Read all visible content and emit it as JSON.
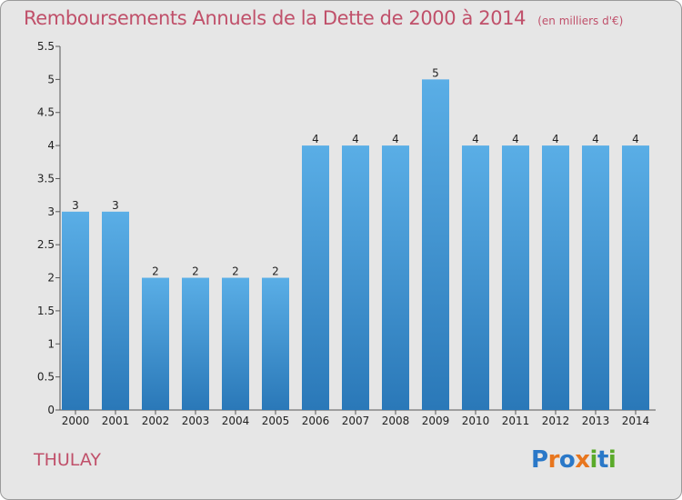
{
  "chart_data": {
    "type": "bar",
    "title": "Remboursements Annuels de la Dette de 2000 à 2014",
    "subtitle": "(en milliers d'€)",
    "categories": [
      "2000",
      "2001",
      "2002",
      "2003",
      "2004",
      "2005",
      "2006",
      "2007",
      "2008",
      "2009",
      "2010",
      "2011",
      "2012",
      "2013",
      "2014"
    ],
    "values": [
      3,
      3,
      2,
      2,
      2,
      2,
      4,
      4,
      4,
      5,
      4,
      4,
      4,
      4,
      4
    ],
    "data_labels": [
      "3",
      "3",
      "2",
      "2",
      "2",
      "2",
      "4",
      "4",
      "4",
      "5",
      "4",
      "4",
      "4",
      "4",
      "4"
    ],
    "y_ticks": [
      "0",
      "0.5",
      "1",
      "1.5",
      "2",
      "2.5",
      "3",
      "3.5",
      "4",
      "4.5",
      "5",
      "5.5"
    ],
    "ylim": [
      0,
      5.5
    ],
    "xlabel": "",
    "ylabel": "",
    "grid": false,
    "colors": {
      "bar_top": "#5aaee6",
      "bar_bottom": "#2a78b8",
      "text": "#c0506a",
      "background": "#e6e6e6"
    }
  },
  "footer": {
    "commune": "THULAY",
    "logo": [
      {
        "ch": "P",
        "color": "#2a78c8"
      },
      {
        "ch": "r",
        "color": "#e8761e"
      },
      {
        "ch": "o",
        "color": "#2a78c8"
      },
      {
        "ch": "x",
        "color": "#e8761e"
      },
      {
        "ch": "i",
        "color": "#5aaa2a"
      },
      {
        "ch": "t",
        "color": "#2a78c8"
      },
      {
        "ch": "i",
        "color": "#5aaa2a"
      }
    ]
  }
}
